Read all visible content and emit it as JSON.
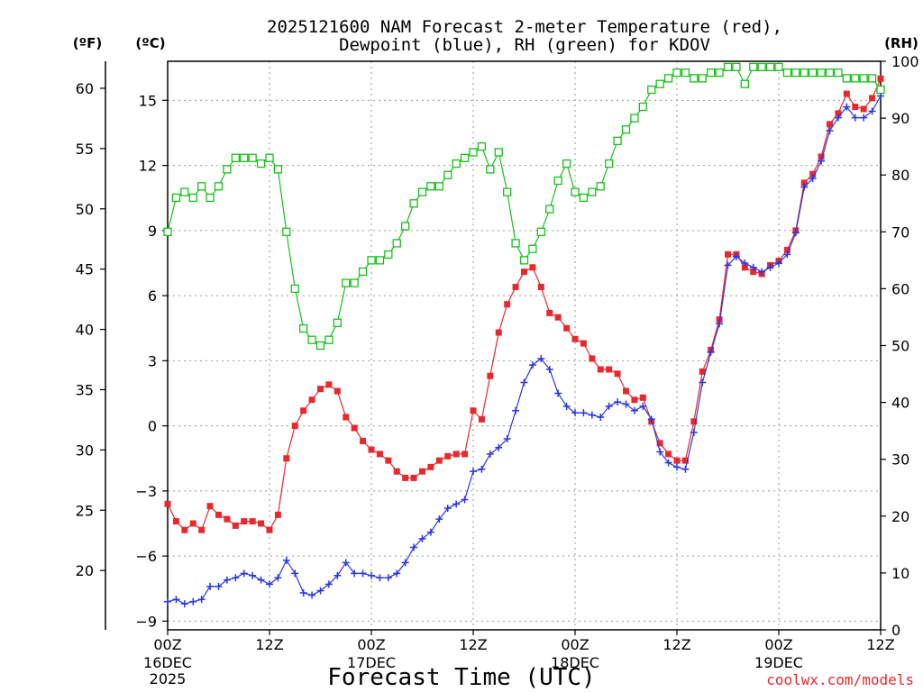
{
  "chart_data": {
    "type": "line",
    "title_line1": "2025121600 NAM Forecast 2-meter Temperature (red),",
    "title_line2": "Dewpoint (blue), RH (green) for KDOV",
    "xlabel": "Forecast Time (UTC)",
    "watermark": "coolwx.com/models",
    "units": {
      "fahrenheit": "(ºF)",
      "celsius": "(ºC)",
      "rh": "(RH)"
    },
    "x_range_hours": [
      0,
      84
    ],
    "y_range_celsius": [
      -9.4,
      16.8
    ],
    "y_range_rh": [
      0,
      100
    ],
    "x_ticks": [
      {
        "hour": 0,
        "label": "00Z",
        "date": "16DEC",
        "year": "2025"
      },
      {
        "hour": 12,
        "label": "12Z",
        "date": "",
        "year": ""
      },
      {
        "hour": 24,
        "label": "00Z",
        "date": "17DEC",
        "year": ""
      },
      {
        "hour": 36,
        "label": "12Z",
        "date": "",
        "year": ""
      },
      {
        "hour": 48,
        "label": "00Z",
        "date": "18DEC",
        "year": ""
      },
      {
        "hour": 60,
        "label": "12Z",
        "date": "",
        "year": ""
      },
      {
        "hour": 72,
        "label": "00Z",
        "date": "19DEC",
        "year": ""
      },
      {
        "hour": 84,
        "label": "12Z",
        "date": "",
        "year": ""
      }
    ],
    "celsius_ticks": [
      -9,
      -6,
      -3,
      0,
      3,
      6,
      9,
      12,
      15
    ],
    "fahrenheit_ticks": [
      20,
      25,
      30,
      35,
      40,
      45,
      50,
      55,
      60
    ],
    "rh_ticks": [
      0,
      10,
      20,
      30,
      40,
      50,
      60,
      70,
      80,
      90,
      100
    ],
    "colors": {
      "temperature": "#e8282d",
      "dewpoint": "#2a37e0",
      "rh": "#17c11a",
      "grid": "#9a9a9a"
    },
    "grid": true,
    "series": [
      {
        "name": "Temperature",
        "axis": "celsius",
        "marker": "filled-square",
        "x": [
          0,
          1,
          2,
          3,
          4,
          5,
          6,
          7,
          8,
          9,
          10,
          11,
          12,
          13,
          14,
          15,
          16,
          17,
          18,
          19,
          20,
          21,
          22,
          23,
          24,
          25,
          26,
          27,
          28,
          29,
          30,
          31,
          32,
          33,
          34,
          35,
          36,
          37,
          38,
          39,
          40,
          41,
          42,
          43,
          44,
          45,
          46,
          47,
          48,
          49,
          50,
          51,
          52,
          53,
          54,
          55,
          56,
          57,
          58,
          59,
          60,
          61,
          62,
          63,
          64,
          65,
          66,
          67,
          68,
          69,
          70,
          71,
          72,
          73,
          74,
          75,
          76,
          77,
          78,
          79,
          80,
          81,
          82,
          83,
          84
        ],
        "y": [
          -3.6,
          -4.4,
          -4.8,
          -4.5,
          -4.8,
          -3.7,
          -4.1,
          -4.3,
          -4.6,
          -4.4,
          -4.4,
          -4.5,
          -4.8,
          -4.1,
          -1.5,
          0.0,
          0.7,
          1.2,
          1.7,
          1.9,
          1.6,
          0.4,
          -0.1,
          -0.7,
          -1.1,
          -1.3,
          -1.6,
          -2.1,
          -2.4,
          -2.4,
          -2.1,
          -1.9,
          -1.6,
          -1.4,
          -1.3,
          -1.3,
          0.7,
          0.3,
          2.3,
          4.3,
          5.6,
          6.4,
          7.1,
          7.3,
          6.4,
          5.2,
          5.0,
          4.5,
          4.0,
          3.8,
          3.1,
          2.6,
          2.6,
          2.4,
          1.6,
          1.2,
          1.3,
          0.2,
          -0.8,
          -1.3,
          -1.6,
          -1.6,
          0.2,
          2.5,
          3.5,
          4.9,
          7.9,
          7.9,
          7.3,
          7.1,
          7.0,
          7.4,
          7.6,
          8.1,
          9.0,
          11.2,
          11.6,
          12.4,
          13.9,
          14.4,
          15.3,
          14.7,
          14.6,
          15.1,
          16.0
        ]
      },
      {
        "name": "Dewpoint",
        "axis": "celsius",
        "marker": "plus",
        "x": [
          0,
          1,
          2,
          3,
          4,
          5,
          6,
          7,
          8,
          9,
          10,
          11,
          12,
          13,
          14,
          15,
          16,
          17,
          18,
          19,
          20,
          21,
          22,
          23,
          24,
          25,
          26,
          27,
          28,
          29,
          30,
          31,
          32,
          33,
          34,
          35,
          36,
          37,
          38,
          39,
          40,
          41,
          42,
          43,
          44,
          45,
          46,
          47,
          48,
          49,
          50,
          51,
          52,
          53,
          54,
          55,
          56,
          57,
          58,
          59,
          60,
          61,
          62,
          63,
          64,
          65,
          66,
          67,
          68,
          69,
          70,
          71,
          72,
          73,
          74,
          75,
          76,
          77,
          78,
          79,
          80,
          81,
          82,
          83,
          84
        ],
        "y": [
          -8.1,
          -8.0,
          -8.2,
          -8.1,
          -8.0,
          -7.4,
          -7.4,
          -7.1,
          -7.0,
          -6.8,
          -6.9,
          -7.1,
          -7.3,
          -7.0,
          -6.2,
          -6.8,
          -7.7,
          -7.8,
          -7.6,
          -7.3,
          -6.9,
          -6.3,
          -6.8,
          -6.8,
          -6.9,
          -7.0,
          -7.0,
          -6.8,
          -6.3,
          -5.6,
          -5.2,
          -4.9,
          -4.3,
          -3.8,
          -3.6,
          -3.4,
          -2.1,
          -2.0,
          -1.3,
          -1.0,
          -0.6,
          0.7,
          2.0,
          2.8,
          3.1,
          2.6,
          1.5,
          0.9,
          0.6,
          0.6,
          0.5,
          0.4,
          0.9,
          1.1,
          1.0,
          0.7,
          0.9,
          0.3,
          -1.2,
          -1.7,
          -1.9,
          -2.0,
          -0.3,
          2.0,
          3.4,
          4.7,
          7.4,
          7.8,
          7.5,
          7.3,
          7.1,
          7.3,
          7.5,
          7.9,
          8.9,
          11.0,
          11.4,
          12.2,
          13.6,
          14.2,
          14.7,
          14.2,
          14.2,
          14.5,
          15.2
        ]
      },
      {
        "name": "RH",
        "axis": "rh",
        "marker": "open-square",
        "x": [
          0,
          1,
          2,
          3,
          4,
          5,
          6,
          7,
          8,
          9,
          10,
          11,
          12,
          13,
          14,
          15,
          16,
          17,
          18,
          19,
          20,
          21,
          22,
          23,
          24,
          25,
          26,
          27,
          28,
          29,
          30,
          31,
          32,
          33,
          34,
          35,
          36,
          37,
          38,
          39,
          40,
          41,
          42,
          43,
          44,
          45,
          46,
          47,
          48,
          49,
          50,
          51,
          52,
          53,
          54,
          55,
          56,
          57,
          58,
          59,
          60,
          61,
          62,
          63,
          64,
          65,
          66,
          67,
          68,
          69,
          70,
          71,
          72,
          73,
          74,
          75,
          76,
          77,
          78,
          79,
          80,
          81,
          82,
          83,
          84
        ],
        "y": [
          70,
          76,
          77,
          76,
          78,
          76,
          78,
          81,
          83,
          83,
          83,
          82,
          83,
          81,
          70,
          60,
          53,
          51,
          50,
          51,
          54,
          61,
          61,
          63,
          65,
          65,
          66,
          68,
          71,
          75,
          77,
          78,
          78,
          80,
          82,
          83,
          84,
          85,
          81,
          84,
          77,
          68,
          65,
          67,
          70,
          74,
          79,
          82,
          77,
          76,
          77,
          78,
          82,
          86,
          88,
          90,
          92,
          95,
          96,
          97,
          98,
          98,
          97,
          97,
          98,
          98,
          99,
          99,
          96,
          99,
          99,
          99,
          99,
          98,
          98,
          98,
          98,
          98,
          98,
          98,
          97,
          97,
          97,
          97,
          95
        ]
      }
    ]
  }
}
